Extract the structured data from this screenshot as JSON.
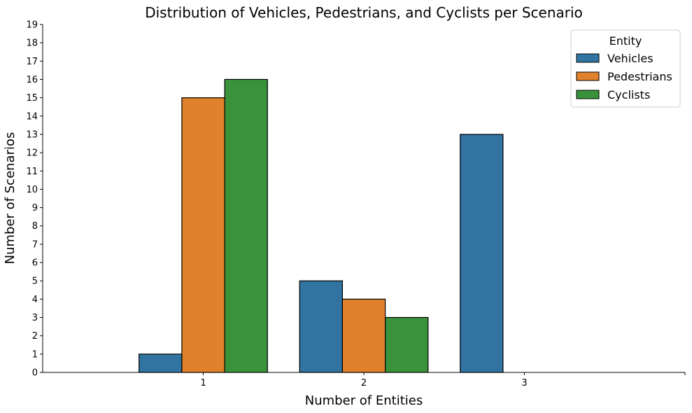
{
  "chart_data": {
    "type": "bar",
    "title": "Distribution of Vehicles, Pedestrians, and Cyclists per Scenario",
    "xlabel": "Number of Entities",
    "ylabel": "Number of Scenarios",
    "categories": [
      "1",
      "2",
      "3"
    ],
    "ylim": [
      0,
      19
    ],
    "yticks": [
      0,
      1,
      2,
      3,
      4,
      5,
      6,
      7,
      8,
      9,
      10,
      11,
      12,
      13,
      14,
      15,
      16,
      17,
      18,
      19
    ],
    "grid": false,
    "legend": {
      "title": "Entity",
      "placement": "top-right"
    },
    "series": [
      {
        "name": "Vehicles",
        "color": "#3274a1",
        "values": [
          1,
          5,
          13
        ]
      },
      {
        "name": "Pedestrians",
        "color": "#e1812c",
        "values": [
          15,
          4,
          0
        ]
      },
      {
        "name": "Cyclists",
        "color": "#3a923a",
        "values": [
          16,
          3,
          0
        ]
      }
    ]
  }
}
